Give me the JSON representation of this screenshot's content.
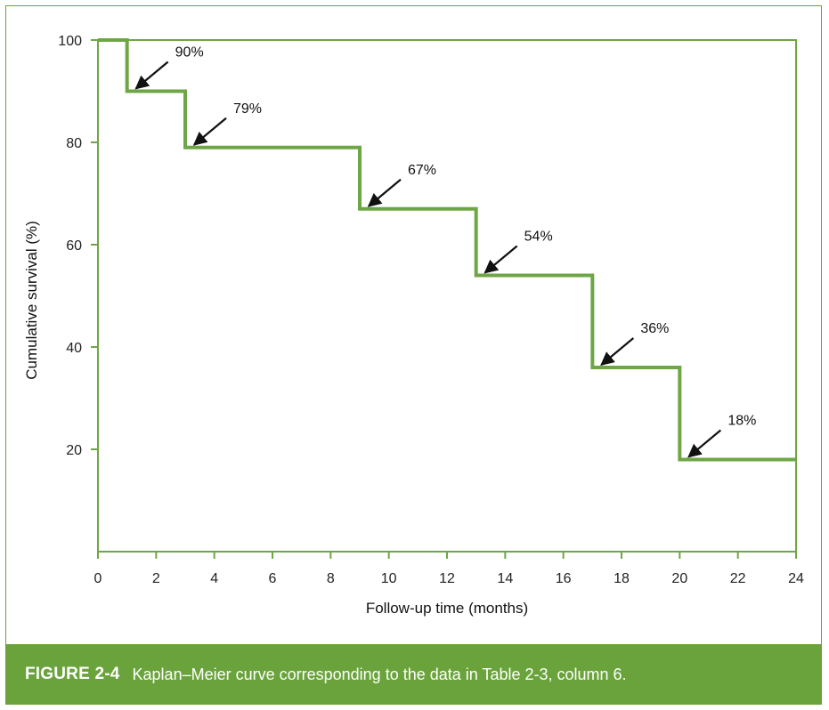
{
  "colors": {
    "curve": "#6fa645",
    "frame": "#6fa645",
    "caption_bg": "#6aa33b",
    "caption_text": "#ffffff",
    "arrow": "#111111"
  },
  "caption": {
    "label": "FIGURE 2-4",
    "text": "Kaplan–Meier curve corresponding to the data in Table 2-3, column 6."
  },
  "chart_data": {
    "type": "line",
    "step": true,
    "xlabel": "Follow-up time (months)",
    "ylabel": "Cumulative survival (%)",
    "xlim": [
      0,
      24
    ],
    "ylim": [
      0,
      100
    ],
    "xticks": [
      0,
      2,
      4,
      6,
      8,
      10,
      12,
      14,
      16,
      18,
      20,
      22,
      24
    ],
    "yticks": [
      20,
      40,
      60,
      80,
      100
    ],
    "grid": false,
    "series": [
      {
        "x": [
          0,
          1,
          3,
          9,
          13,
          17,
          20,
          24
        ],
        "y": [
          100,
          90,
          79,
          67,
          54,
          36,
          18,
          18
        ]
      }
    ],
    "annotations": [
      {
        "x": 1,
        "y": 90,
        "text": "90%"
      },
      {
        "x": 3,
        "y": 79,
        "text": "79%"
      },
      {
        "x": 9,
        "y": 67,
        "text": "67%"
      },
      {
        "x": 13,
        "y": 54,
        "text": "54%"
      },
      {
        "x": 17,
        "y": 36,
        "text": "36%"
      },
      {
        "x": 20,
        "y": 18,
        "text": "18%"
      }
    ]
  }
}
